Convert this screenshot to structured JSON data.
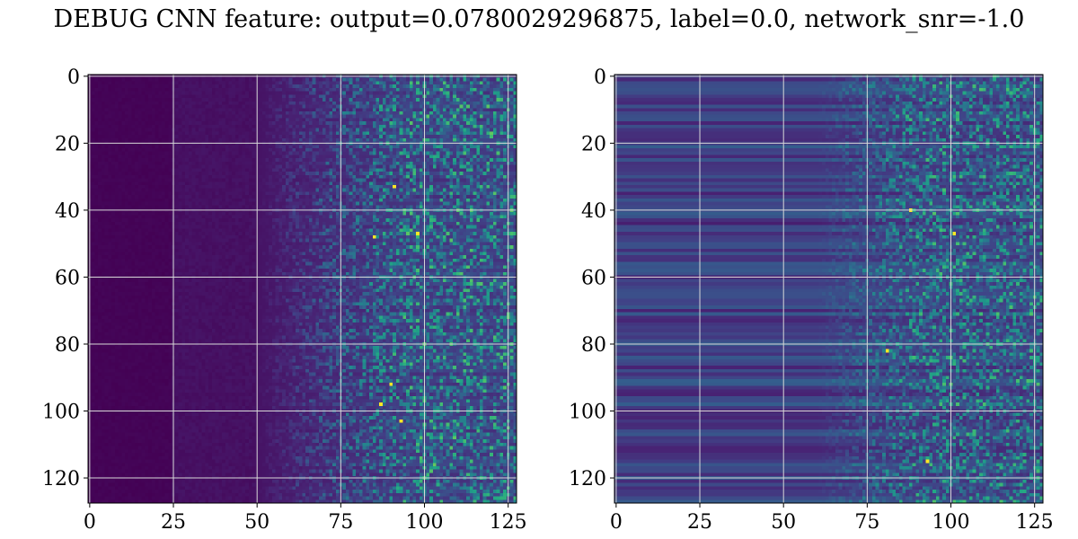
{
  "chart_data": {
    "title": "DEBUG CNN feature: output=0.0780029296875, label=0.0, network_snr=-1.0",
    "type": "heatmap",
    "colormap": "viridis",
    "grid": true,
    "panels": [
      {
        "name": "",
        "xlim": [
          -0.5,
          127.5
        ],
        "ylim": [
          127.5,
          -0.5
        ],
        "xticks": [
          0,
          25,
          50,
          75,
          100,
          125
        ],
        "yticks": [
          0,
          20,
          40,
          60,
          80,
          100,
          120
        ],
        "xtick_labels": [
          "0",
          "25",
          "50",
          "75",
          "100",
          "125"
        ],
        "ytick_labels": [
          "0",
          "20",
          "40",
          "60",
          "80",
          "100",
          "120"
        ],
        "rows": 128,
        "cols": 128,
        "description_of_values": "near-zero for columns 0-50, sparse bright speckle increasing toward columns 75-127",
        "peak_points": [
          [
            91,
            33
          ],
          [
            85,
            48
          ],
          [
            98,
            47
          ],
          [
            90,
            92
          ],
          [
            87,
            98
          ],
          [
            93,
            103
          ]
        ]
      },
      {
        "name": "",
        "xlim": [
          -0.5,
          127.5
        ],
        "ylim": [
          127.5,
          -0.5
        ],
        "xticks": [
          0,
          25,
          50,
          75,
          100,
          125
        ],
        "yticks": [
          0,
          20,
          40,
          60,
          80,
          100,
          120
        ],
        "xtick_labels": [
          "0",
          "25",
          "50",
          "75",
          "100",
          "125"
        ],
        "ytick_labels": [
          "0",
          "20",
          "40",
          "60",
          "80",
          "100",
          "120"
        ],
        "rows": 128,
        "cols": 128,
        "description_of_values": "horizontal banding across all columns, stronger speckle toward columns 70-127",
        "peak_points": [
          [
            88,
            40
          ],
          [
            101,
            47
          ],
          [
            81,
            82
          ],
          [
            93,
            115
          ]
        ]
      }
    ]
  }
}
